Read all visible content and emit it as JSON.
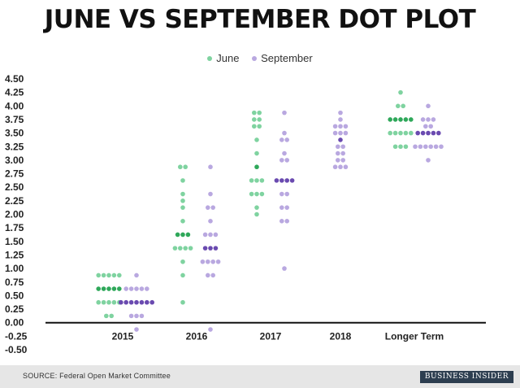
{
  "title": "JUNE VS SEPTEMBER DOT PLOT",
  "legend": [
    {
      "label": "June",
      "color": "#7fd3a0"
    },
    {
      "label": "September",
      "color": "#b9a8e0"
    }
  ],
  "colors": {
    "june": "#7fd3a0",
    "june_median": "#2fa85a",
    "september": "#b9a8e0",
    "september_median": "#6a4ab0"
  },
  "footer": {
    "source": "SOURCE: Federal Open Market Committee",
    "brand": "BUSINESS INSIDER"
  },
  "chart_data": {
    "type": "scatter",
    "title": "JUNE VS SEPTEMBER DOT PLOT",
    "categories": [
      "2015",
      "2016",
      "2017",
      "2018",
      "Longer Term"
    ],
    "ylim": [
      -0.5,
      4.5
    ],
    "yticks": [
      "4.50",
      "4.25",
      "4.00",
      "3.75",
      "3.50",
      "3.25",
      "3.00",
      "2.75",
      "2.50",
      "2.25",
      "2.00",
      "1.75",
      "1.50",
      "1.25",
      "1.00",
      "0.75",
      "0.50",
      "0.25",
      "0.00",
      "-0.25",
      "-0.50"
    ],
    "grid": false,
    "legend_position": "top-center",
    "series": [
      {
        "name": "June",
        "groups": [
          {
            "category": "2015",
            "dots": [
              [
                0.875,
                5
              ],
              [
                0.625,
                5
              ],
              [
                0.375,
                5
              ],
              [
                0.125,
                2
              ]
            ],
            "median": 0.625
          },
          {
            "category": "2016",
            "dots": [
              [
                2.875,
                2
              ],
              [
                2.625,
                1
              ],
              [
                2.375,
                1
              ],
              [
                2.25,
                1
              ],
              [
                2.125,
                1
              ],
              [
                1.875,
                1
              ],
              [
                1.625,
                3
              ],
              [
                1.375,
                4
              ],
              [
                1.125,
                1
              ],
              [
                0.875,
                1
              ],
              [
                0.375,
                1
              ]
            ],
            "median": 1.625
          },
          {
            "category": "2017",
            "dots": [
              [
                3.875,
                2
              ],
              [
                3.75,
                2
              ],
              [
                3.625,
                2
              ],
              [
                3.375,
                1
              ],
              [
                3.125,
                1
              ],
              [
                2.875,
                1
              ],
              [
                2.625,
                3
              ],
              [
                2.375,
                3
              ],
              [
                2.125,
                1
              ],
              [
                2.0,
                1
              ]
            ],
            "median": 2.875
          },
          {
            "category": "Longer Term",
            "dots": [
              [
                4.25,
                1
              ],
              [
                4.0,
                2
              ],
              [
                3.75,
                5
              ],
              [
                3.5,
                5
              ],
              [
                3.25,
                3
              ]
            ],
            "median": 3.75
          }
        ]
      },
      {
        "name": "September",
        "groups": [
          {
            "category": "2015",
            "dots": [
              [
                0.875,
                1
              ],
              [
                0.625,
                5
              ],
              [
                0.375,
                7
              ],
              [
                0.125,
                3
              ],
              [
                -0.125,
                1
              ]
            ],
            "median": 0.375
          },
          {
            "category": "2016",
            "dots": [
              [
                2.875,
                1
              ],
              [
                2.375,
                1
              ],
              [
                2.125,
                2
              ],
              [
                1.875,
                1
              ],
              [
                1.625,
                3
              ],
              [
                1.375,
                3
              ],
              [
                1.125,
                4
              ],
              [
                0.875,
                2
              ],
              [
                -0.125,
                1
              ]
            ],
            "median": 1.375
          },
          {
            "category": "2017",
            "dots": [
              [
                3.875,
                1
              ],
              [
                3.5,
                1
              ],
              [
                3.375,
                2
              ],
              [
                3.125,
                1
              ],
              [
                3.0,
                2
              ],
              [
                2.625,
                4
              ],
              [
                2.375,
                2
              ],
              [
                2.125,
                2
              ],
              [
                1.875,
                2
              ],
              [
                1.0,
                1
              ]
            ],
            "median": 2.625
          },
          {
            "category": "2018",
            "dots": [
              [
                3.875,
                1
              ],
              [
                3.75,
                1
              ],
              [
                3.625,
                3
              ],
              [
                3.5,
                3
              ],
              [
                3.375,
                1
              ],
              [
                3.25,
                2
              ],
              [
                3.125,
                2
              ],
              [
                3.0,
                2
              ],
              [
                2.875,
                3
              ]
            ],
            "median": 3.375
          },
          {
            "category": "Longer Term",
            "dots": [
              [
                4.0,
                1
              ],
              [
                3.75,
                3
              ],
              [
                3.625,
                2
              ],
              [
                3.5,
                5
              ],
              [
                3.25,
                6
              ],
              [
                3.0,
                1
              ]
            ],
            "median": 3.5
          }
        ]
      }
    ]
  }
}
